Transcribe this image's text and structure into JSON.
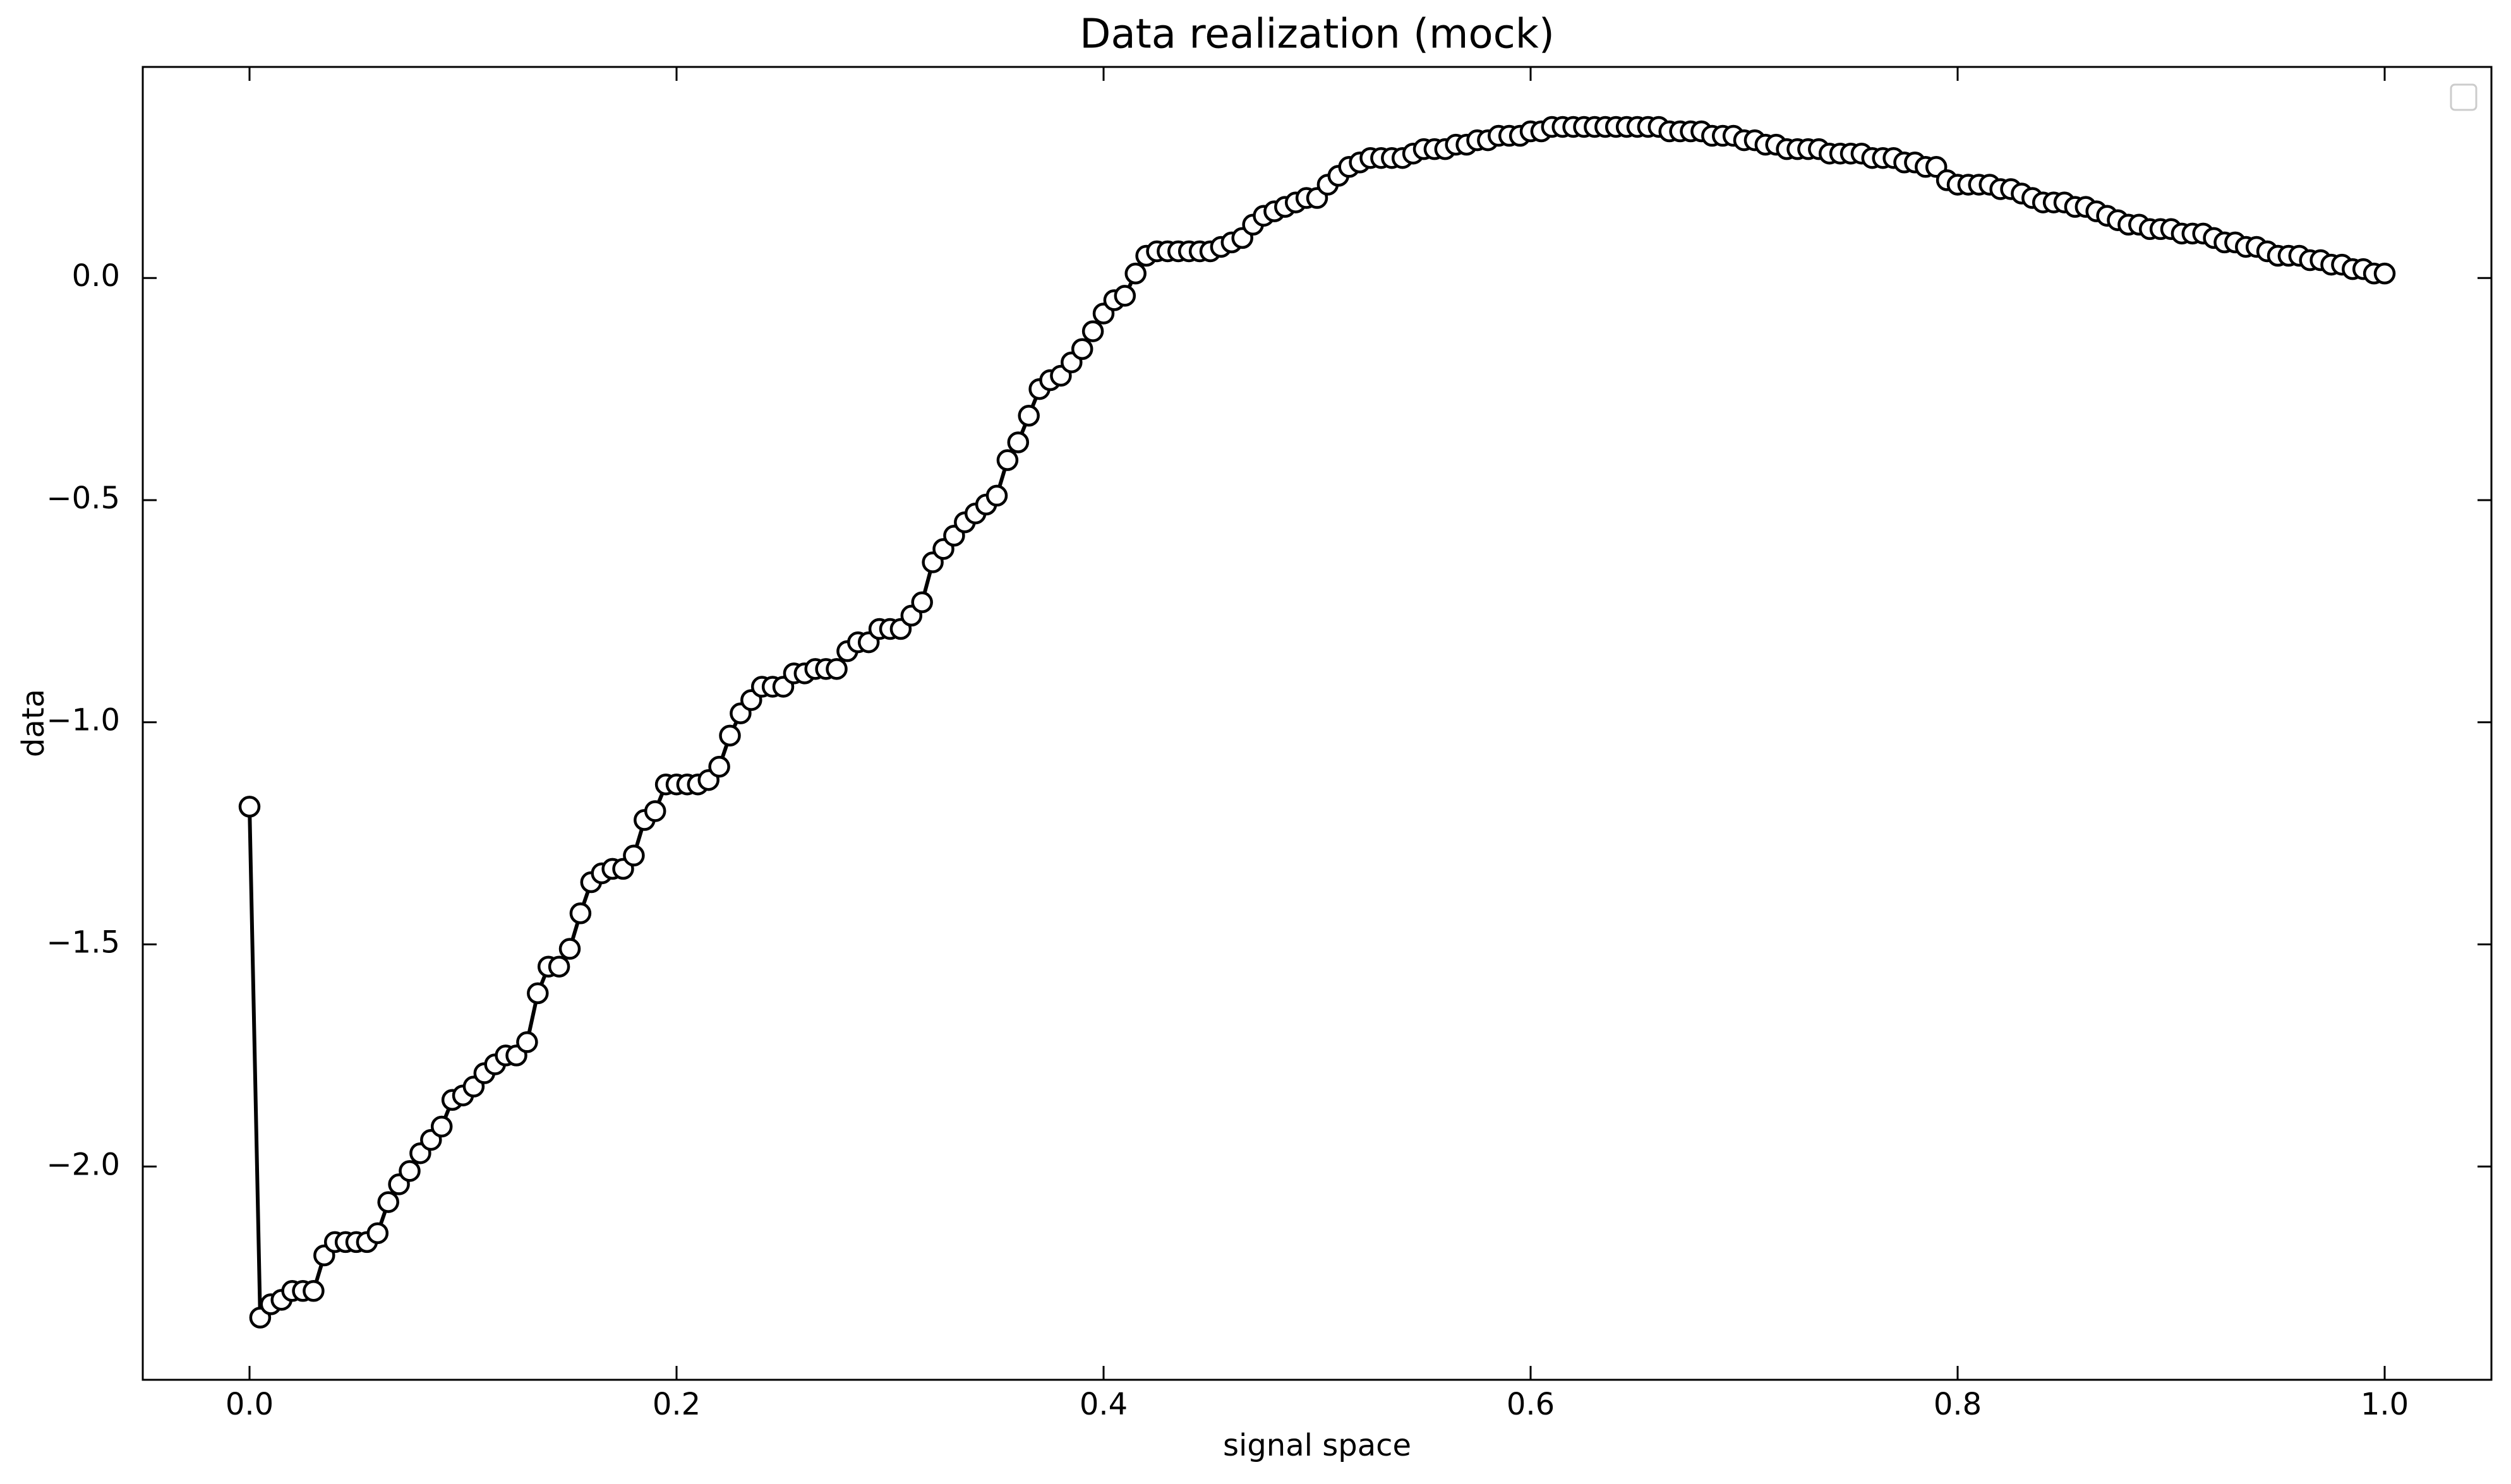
{
  "chart_data": {
    "type": "line",
    "title": "Data realization (mock)",
    "x_label": "signal space",
    "y_label": "data",
    "color": "#000000",
    "marker_fill": "#ffffff",
    "markers": true,
    "legend": "upper right",
    "xlim": [
      -0.05,
      1.05
    ],
    "ylim": [
      -2.48,
      0.475
    ],
    "xticks": [
      {
        "value": 0,
        "label": "0.0"
      },
      0.2,
      0.4,
      0.6,
      0.8,
      {
        "value": 1,
        "label": "1.0"
      }
    ],
    "yticks": [
      {
        "value": -2,
        "label": "−2.0"
      },
      {
        "value": -1.5,
        "label": "−1.5"
      },
      {
        "value": -1,
        "label": "−1.0"
      },
      {
        "value": -0.5,
        "label": "−0.5"
      },
      {
        "value": 0,
        "label": "0.0"
      }
    ],
    "x": [
      0,
      0.005,
      0.01,
      0.015,
      0.02,
      0.025,
      0.03,
      0.035,
      0.04,
      0.045,
      0.05,
      0.055,
      0.06,
      0.065,
      0.07,
      0.075,
      0.08,
      0.085,
      0.09,
      0.095,
      0.1,
      0.105,
      0.11,
      0.115,
      0.12,
      0.125,
      0.13,
      0.135,
      0.14,
      0.145,
      0.15,
      0.155,
      0.16,
      0.165,
      0.17,
      0.175,
      0.18,
      0.185,
      0.19,
      0.195,
      0.2,
      0.205,
      0.21,
      0.215,
      0.22,
      0.225,
      0.23,
      0.235,
      0.24,
      0.245,
      0.25,
      0.255,
      0.26,
      0.265,
      0.27,
      0.275,
      0.28,
      0.285,
      0.29,
      0.295,
      0.3,
      0.305,
      0.31,
      0.315,
      0.32,
      0.325,
      0.33,
      0.335,
      0.34,
      0.345,
      0.35,
      0.355,
      0.36,
      0.365,
      0.37,
      0.375,
      0.38,
      0.385,
      0.39,
      0.395,
      0.4,
      0.405,
      0.41,
      0.415,
      0.42,
      0.425,
      0.43,
      0.435,
      0.44,
      0.445,
      0.45,
      0.455,
      0.46,
      0.465,
      0.47,
      0.475,
      0.48,
      0.485,
      0.49,
      0.495,
      0.5,
      0.505,
      0.51,
      0.515,
      0.52,
      0.525,
      0.53,
      0.535,
      0.54,
      0.545,
      0.55,
      0.555,
      0.56,
      0.565,
      0.57,
      0.575,
      0.58,
      0.585,
      0.59,
      0.595,
      0.6,
      0.605,
      0.61,
      0.615,
      0.62,
      0.625,
      0.63,
      0.635,
      0.64,
      0.645,
      0.65,
      0.655,
      0.66,
      0.665,
      0.67,
      0.675,
      0.68,
      0.685,
      0.69,
      0.695,
      0.7,
      0.705,
      0.71,
      0.715,
      0.72,
      0.725,
      0.73,
      0.735,
      0.74,
      0.745,
      0.75,
      0.755,
      0.76,
      0.765,
      0.77,
      0.775,
      0.78,
      0.785,
      0.79,
      0.795,
      0.8,
      0.805,
      0.81,
      0.815,
      0.82,
      0.825,
      0.83,
      0.835,
      0.84,
      0.845,
      0.85,
      0.855,
      0.86,
      0.865,
      0.87,
      0.875,
      0.88,
      0.885,
      0.89,
      0.895,
      0.9,
      0.905,
      0.91,
      0.915,
      0.92,
      0.925,
      0.93,
      0.935,
      0.94,
      0.945,
      0.95,
      0.955,
      0.96,
      0.965,
      0.97,
      0.975,
      0.98,
      0.985,
      0.99,
      0.995,
      1
    ],
    "values": [
      -1.19,
      -2.34,
      -2.31,
      -2.3,
      -2.28,
      -2.28,
      -2.28,
      -2.2,
      -2.17,
      -2.17,
      -2.17,
      -2.17,
      -2.15,
      -2.08,
      -2.04,
      -2.01,
      -1.97,
      -1.94,
      -1.91,
      -1.85,
      -1.84,
      -1.82,
      -1.79,
      -1.77,
      -1.75,
      -1.75,
      -1.72,
      -1.61,
      -1.55,
      -1.55,
      -1.51,
      -1.43,
      -1.36,
      -1.34,
      -1.33,
      -1.33,
      -1.3,
      -1.22,
      -1.2,
      -1.14,
      -1.14,
      -1.14,
      -1.14,
      -1.13,
      -1.1,
      -1.03,
      -0.98,
      -0.95,
      -0.92,
      -0.92,
      -0.92,
      -0.89,
      -0.89,
      -0.88,
      -0.88,
      -0.88,
      -0.84,
      -0.82,
      -0.82,
      -0.79,
      -0.79,
      -0.79,
      -0.76,
      -0.73,
      -0.64,
      -0.61,
      -0.58,
      -0.55,
      -0.53,
      -0.51,
      -0.49,
      -0.41,
      -0.37,
      -0.31,
      -0.25,
      -0.23,
      -0.22,
      -0.19,
      -0.16,
      -0.12,
      -0.08,
      -0.05,
      -0.04,
      0.01,
      0.05,
      0.06,
      0.06,
      0.06,
      0.06,
      0.06,
      0.06,
      0.07,
      0.08,
      0.09,
      0.12,
      0.14,
      0.15,
      0.16,
      0.17,
      0.18,
      0.18,
      0.21,
      0.23,
      0.25,
      0.26,
      0.27,
      0.27,
      0.27,
      0.27,
      0.28,
      0.29,
      0.29,
      0.29,
      0.3,
      0.3,
      0.31,
      0.31,
      0.32,
      0.32,
      0.32,
      0.33,
      0.33,
      0.34,
      0.34,
      0.34,
      0.34,
      0.34,
      0.34,
      0.34,
      0.34,
      0.34,
      0.34,
      0.34,
      0.33,
      0.33,
      0.33,
      0.33,
      0.32,
      0.32,
      0.32,
      0.31,
      0.31,
      0.3,
      0.3,
      0.29,
      0.29,
      0.29,
      0.29,
      0.28,
      0.28,
      0.28,
      0.28,
      0.27,
      0.27,
      0.27,
      0.26,
      0.26,
      0.25,
      0.25,
      0.22,
      0.21,
      0.21,
      0.21,
      0.21,
      0.2,
      0.2,
      0.19,
      0.18,
      0.17,
      0.17,
      0.17,
      0.16,
      0.16,
      0.15,
      0.14,
      0.13,
      0.12,
      0.12,
      0.11,
      0.11,
      0.11,
      0.1,
      0.1,
      0.1,
      0.09,
      0.08,
      0.08,
      0.07,
      0.07,
      0.06,
      0.05,
      0.05,
      0.05,
      0.04,
      0.04,
      0.03,
      0.03,
      0.02,
      0.02,
      0.01,
      0.01
    ]
  }
}
